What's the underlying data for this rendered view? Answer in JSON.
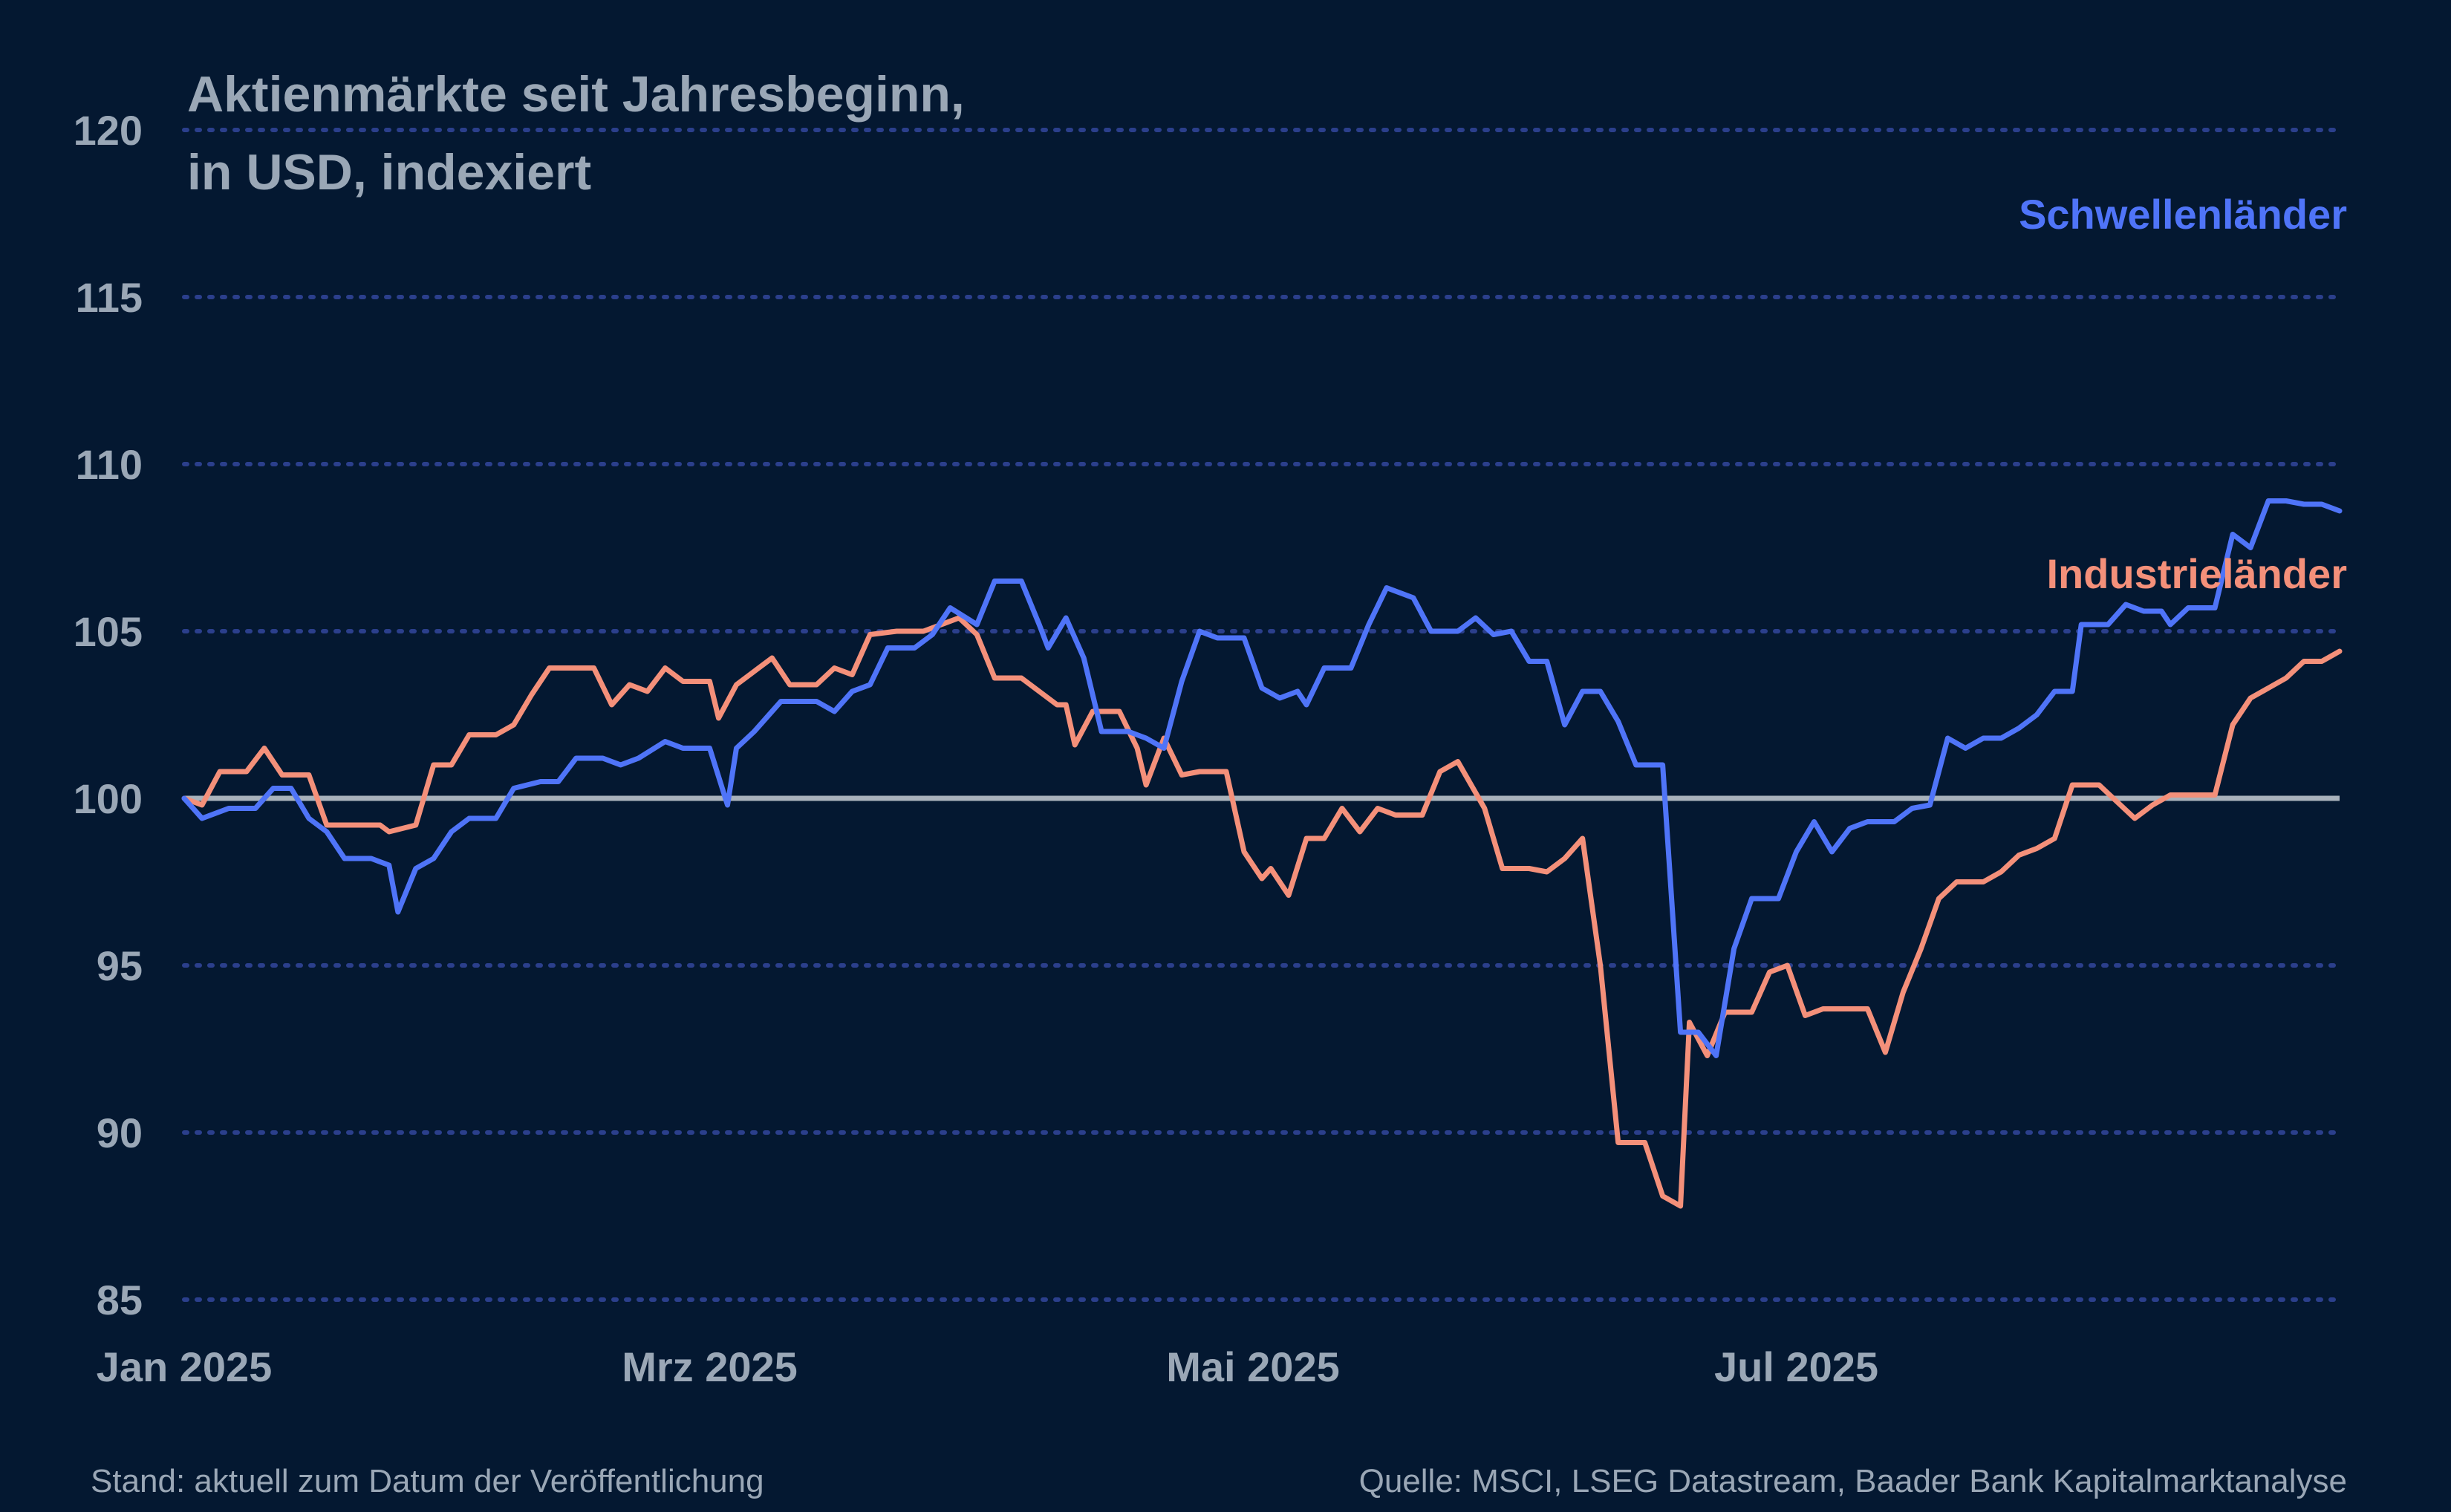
{
  "colors": {
    "background": "#041831",
    "text": "#9aa7b6",
    "grid": "#2b3f8c",
    "baseline": "#a9b2bc",
    "emerging": "#4f74f8",
    "developed": "#f4907a"
  },
  "title_lines": [
    "Aktienmärkte seit Jahresbeginn,",
    "in USD, indexiert"
  ],
  "footer": {
    "left": "Stand: aktuell zum Datum der Veröffentlichung",
    "right": "Quelle: MSCI, LSEG Datastream, Baader Bank Kapitalmarktanalyse"
  },
  "chart_data": {
    "type": "line",
    "title": "Aktienmärkte seit Jahresbeginn, in USD, indexiert",
    "xlabel": "",
    "ylabel": "",
    "ylim": [
      85,
      120
    ],
    "yticks": [
      120,
      115,
      110,
      105,
      100,
      95,
      90,
      85
    ],
    "xlim": [
      "2025-01-01",
      "2025-08-31"
    ],
    "xticks": [
      {
        "label": "Jan 2025",
        "date": "2025-01-01"
      },
      {
        "label": "Mrz 2025",
        "date": "2025-03-01"
      },
      {
        "label": "Mai 2025",
        "date": "2025-05-01"
      },
      {
        "label": "Jul 2025",
        "date": "2025-07-01"
      }
    ],
    "grid": "horizontal dotted",
    "reference_line": 100,
    "series": [
      {
        "name": "Schwellenländer",
        "color": "#4f74f8",
        "points": [
          [
            "2025-01-01",
            100.0
          ],
          [
            "2025-01-03",
            99.4
          ],
          [
            "2025-01-06",
            99.7
          ],
          [
            "2025-01-09",
            99.7
          ],
          [
            "2025-01-11",
            100.3
          ],
          [
            "2025-01-13",
            100.3
          ],
          [
            "2025-01-15",
            99.4
          ],
          [
            "2025-01-17",
            99.0
          ],
          [
            "2025-01-19",
            98.2
          ],
          [
            "2025-01-22",
            98.2
          ],
          [
            "2025-01-24",
            98.0
          ],
          [
            "2025-01-25",
            96.6
          ],
          [
            "2025-01-27",
            97.9
          ],
          [
            "2025-01-29",
            98.2
          ],
          [
            "2025-01-31",
            99.0
          ],
          [
            "2025-02-02",
            99.4
          ],
          [
            "2025-02-05",
            99.4
          ],
          [
            "2025-02-07",
            100.3
          ],
          [
            "2025-02-10",
            100.5
          ],
          [
            "2025-02-12",
            100.5
          ],
          [
            "2025-02-14",
            101.2
          ],
          [
            "2025-02-17",
            101.2
          ],
          [
            "2025-02-19",
            101.0
          ],
          [
            "2025-02-21",
            101.2
          ],
          [
            "2025-02-24",
            101.7
          ],
          [
            "2025-02-26",
            101.5
          ],
          [
            "2025-03-01",
            101.5
          ],
          [
            "2025-03-03",
            99.8
          ],
          [
            "2025-03-04",
            101.5
          ],
          [
            "2025-03-06",
            102.0
          ],
          [
            "2025-03-09",
            102.9
          ],
          [
            "2025-03-13",
            102.9
          ],
          [
            "2025-03-15",
            102.6
          ],
          [
            "2025-03-17",
            103.2
          ],
          [
            "2025-03-19",
            103.4
          ],
          [
            "2025-03-21",
            104.5
          ],
          [
            "2025-03-24",
            104.5
          ],
          [
            "2025-03-26",
            104.9
          ],
          [
            "2025-03-28",
            105.7
          ],
          [
            "2025-03-31",
            105.2
          ],
          [
            "2025-04-02",
            106.5
          ],
          [
            "2025-04-05",
            106.5
          ],
          [
            "2025-04-07",
            105.2
          ],
          [
            "2025-04-08",
            104.5
          ],
          [
            "2025-04-10",
            105.4
          ],
          [
            "2025-04-12",
            104.2
          ],
          [
            "2025-04-14",
            102.0
          ],
          [
            "2025-04-17",
            102.0
          ],
          [
            "2025-04-19",
            101.8
          ],
          [
            "2025-04-21",
            101.5
          ],
          [
            "2025-04-23",
            103.5
          ],
          [
            "2025-04-25",
            105.0
          ],
          [
            "2025-04-27",
            104.8
          ],
          [
            "2025-04-30",
            104.8
          ],
          [
            "2025-05-02",
            103.3
          ],
          [
            "2025-05-04",
            103.0
          ],
          [
            "2025-05-06",
            103.2
          ],
          [
            "2025-05-07",
            102.8
          ],
          [
            "2025-05-09",
            103.9
          ],
          [
            "2025-05-12",
            103.9
          ],
          [
            "2025-05-14",
            105.2
          ],
          [
            "2025-05-16",
            106.3
          ],
          [
            "2025-05-19",
            106.0
          ],
          [
            "2025-05-21",
            105.0
          ],
          [
            "2025-05-24",
            105.0
          ],
          [
            "2025-05-26",
            105.4
          ],
          [
            "2025-05-28",
            104.9
          ],
          [
            "2025-05-30",
            105.0
          ],
          [
            "2025-06-01",
            104.1
          ],
          [
            "2025-06-03",
            104.1
          ],
          [
            "2025-06-05",
            102.2
          ],
          [
            "2025-06-07",
            103.2
          ],
          [
            "2025-06-09",
            103.2
          ],
          [
            "2025-06-11",
            102.3
          ],
          [
            "2025-06-13",
            101.0
          ],
          [
            "2025-06-16",
            101.0
          ],
          [
            "2025-06-18",
            93.0
          ],
          [
            "2025-06-20",
            93.0
          ],
          [
            "2025-06-22",
            92.3
          ],
          [
            "2025-06-24",
            95.5
          ],
          [
            "2025-06-26",
            97.0
          ],
          [
            "2025-06-29",
            97.0
          ],
          [
            "2025-07-01",
            98.4
          ],
          [
            "2025-07-03",
            99.3
          ],
          [
            "2025-07-05",
            98.4
          ],
          [
            "2025-07-07",
            99.1
          ],
          [
            "2025-07-09",
            99.3
          ],
          [
            "2025-07-12",
            99.3
          ],
          [
            "2025-07-14",
            99.7
          ],
          [
            "2025-07-16",
            99.8
          ],
          [
            "2025-07-18",
            101.8
          ],
          [
            "2025-07-20",
            101.5
          ],
          [
            "2025-07-22",
            101.8
          ],
          [
            "2025-07-24",
            101.8
          ],
          [
            "2025-07-26",
            102.1
          ],
          [
            "2025-07-28",
            102.5
          ],
          [
            "2025-07-30",
            103.2
          ],
          [
            "2025-08-01",
            103.2
          ],
          [
            "2025-08-02",
            105.2
          ],
          [
            "2025-08-05",
            105.2
          ],
          [
            "2025-08-07",
            105.8
          ],
          [
            "2025-08-09",
            105.6
          ],
          [
            "2025-08-11",
            105.6
          ],
          [
            "2025-08-12",
            105.2
          ],
          [
            "2025-08-14",
            105.7
          ],
          [
            "2025-08-17",
            105.7
          ],
          [
            "2025-08-19",
            107.9
          ],
          [
            "2025-08-21",
            107.5
          ],
          [
            "2025-08-23",
            108.9
          ],
          [
            "2025-08-25",
            108.9
          ],
          [
            "2025-08-27",
            108.8
          ],
          [
            "2025-08-29",
            108.8
          ],
          [
            "2025-08-31",
            108.6
          ]
        ]
      },
      {
        "name": "Industrieländer",
        "color": "#f4907a",
        "points": [
          [
            "2025-01-01",
            100.0
          ],
          [
            "2025-01-03",
            99.8
          ],
          [
            "2025-01-05",
            100.8
          ],
          [
            "2025-01-08",
            100.8
          ],
          [
            "2025-01-10",
            101.5
          ],
          [
            "2025-01-12",
            100.7
          ],
          [
            "2025-01-15",
            100.7
          ],
          [
            "2025-01-17",
            99.2
          ],
          [
            "2025-01-20",
            99.2
          ],
          [
            "2025-01-23",
            99.2
          ],
          [
            "2025-01-24",
            99.0
          ],
          [
            "2025-01-27",
            99.2
          ],
          [
            "2025-01-29",
            101.0
          ],
          [
            "2025-01-31",
            101.0
          ],
          [
            "2025-02-02",
            101.9
          ],
          [
            "2025-02-05",
            101.9
          ],
          [
            "2025-02-07",
            102.2
          ],
          [
            "2025-02-09",
            103.1
          ],
          [
            "2025-02-11",
            103.9
          ],
          [
            "2025-02-14",
            103.9
          ],
          [
            "2025-02-16",
            103.9
          ],
          [
            "2025-02-18",
            102.8
          ],
          [
            "2025-02-20",
            103.4
          ],
          [
            "2025-02-22",
            103.2
          ],
          [
            "2025-02-24",
            103.9
          ],
          [
            "2025-02-26",
            103.5
          ],
          [
            "2025-03-01",
            103.5
          ],
          [
            "2025-03-02",
            102.4
          ],
          [
            "2025-03-04",
            103.4
          ],
          [
            "2025-03-06",
            103.8
          ],
          [
            "2025-03-08",
            104.2
          ],
          [
            "2025-03-10",
            103.4
          ],
          [
            "2025-03-13",
            103.4
          ],
          [
            "2025-03-15",
            103.9
          ],
          [
            "2025-03-17",
            103.7
          ],
          [
            "2025-03-19",
            104.9
          ],
          [
            "2025-03-22",
            105.0
          ],
          [
            "2025-03-25",
            105.0
          ],
          [
            "2025-03-27",
            105.2
          ],
          [
            "2025-03-29",
            105.4
          ],
          [
            "2025-03-31",
            104.9
          ],
          [
            "2025-04-02",
            103.6
          ],
          [
            "2025-04-05",
            103.6
          ],
          [
            "2025-04-07",
            103.2
          ],
          [
            "2025-04-09",
            102.8
          ],
          [
            "2025-04-10",
            102.8
          ],
          [
            "2025-04-11",
            101.6
          ],
          [
            "2025-04-13",
            102.6
          ],
          [
            "2025-04-16",
            102.6
          ],
          [
            "2025-04-18",
            101.5
          ],
          [
            "2025-04-19",
            100.4
          ],
          [
            "2025-04-21",
            101.8
          ],
          [
            "2025-04-23",
            100.7
          ],
          [
            "2025-04-25",
            100.8
          ],
          [
            "2025-04-28",
            100.8
          ],
          [
            "2025-04-30",
            98.4
          ],
          [
            "2025-05-02",
            97.6
          ],
          [
            "2025-05-03",
            97.9
          ],
          [
            "2025-05-05",
            97.1
          ],
          [
            "2025-05-07",
            98.8
          ],
          [
            "2025-05-09",
            98.8
          ],
          [
            "2025-05-11",
            99.7
          ],
          [
            "2025-05-13",
            99.0
          ],
          [
            "2025-05-15",
            99.7
          ],
          [
            "2025-05-17",
            99.5
          ],
          [
            "2025-05-20",
            99.5
          ],
          [
            "2025-05-22",
            100.8
          ],
          [
            "2025-05-24",
            101.1
          ],
          [
            "2025-05-27",
            99.7
          ],
          [
            "2025-05-29",
            97.9
          ],
          [
            "2025-06-01",
            97.9
          ],
          [
            "2025-06-03",
            97.8
          ],
          [
            "2025-06-05",
            98.2
          ],
          [
            "2025-06-07",
            98.8
          ],
          [
            "2025-06-09",
            95.0
          ],
          [
            "2025-06-11",
            89.7
          ],
          [
            "2025-06-14",
            89.7
          ],
          [
            "2025-06-16",
            88.1
          ],
          [
            "2025-06-18",
            87.8
          ],
          [
            "2025-06-19",
            93.3
          ],
          [
            "2025-06-21",
            92.3
          ],
          [
            "2025-06-23",
            93.6
          ],
          [
            "2025-06-26",
            93.6
          ],
          [
            "2025-06-28",
            94.8
          ],
          [
            "2025-06-30",
            95.0
          ],
          [
            "2025-07-02",
            93.5
          ],
          [
            "2025-07-04",
            93.7
          ],
          [
            "2025-07-07",
            93.7
          ],
          [
            "2025-07-09",
            93.7
          ],
          [
            "2025-07-11",
            92.4
          ],
          [
            "2025-07-13",
            94.2
          ],
          [
            "2025-07-15",
            95.5
          ],
          [
            "2025-07-17",
            97.0
          ],
          [
            "2025-07-19",
            97.5
          ],
          [
            "2025-07-22",
            97.5
          ],
          [
            "2025-07-24",
            97.8
          ],
          [
            "2025-07-26",
            98.3
          ],
          [
            "2025-07-28",
            98.5
          ],
          [
            "2025-07-30",
            98.8
          ],
          [
            "2025-08-01",
            100.4
          ],
          [
            "2025-08-04",
            100.4
          ],
          [
            "2025-08-06",
            99.9
          ],
          [
            "2025-08-08",
            99.4
          ],
          [
            "2025-08-10",
            99.8
          ],
          [
            "2025-08-12",
            100.1
          ],
          [
            "2025-08-15",
            100.1
          ],
          [
            "2025-08-17",
            100.1
          ],
          [
            "2025-08-19",
            102.2
          ],
          [
            "2025-08-21",
            103.0
          ],
          [
            "2025-08-23",
            103.3
          ],
          [
            "2025-08-25",
            103.6
          ],
          [
            "2025-08-27",
            104.1
          ],
          [
            "2025-08-29",
            104.1
          ],
          [
            "2025-08-31",
            104.4
          ]
        ]
      }
    ]
  },
  "series_labels": {
    "emerging": "Schwellenländer",
    "developed": "Industrieländer"
  }
}
